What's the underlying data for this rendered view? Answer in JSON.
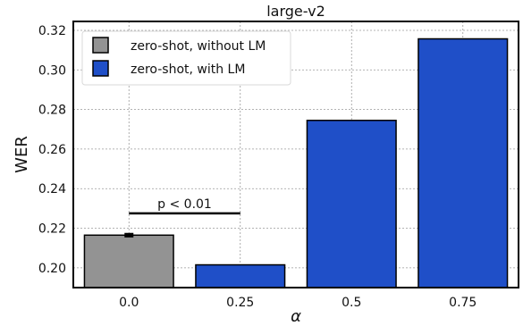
{
  "chart_data": {
    "type": "bar",
    "title": "large-v2",
    "xlabel": "α",
    "ylabel": "WER",
    "categories": [
      "0.0",
      "0.25",
      "0.5",
      "0.75"
    ],
    "series": [
      {
        "name": "zero-shot, without LM",
        "color": "#939393",
        "values": [
          0.2165,
          null,
          null,
          null
        ],
        "errors": [
          0.0007,
          null,
          null,
          null
        ]
      },
      {
        "name": "zero-shot, with LM",
        "color": "#1f4fc8",
        "values": [
          null,
          0.2015,
          0.2745,
          0.3157
        ]
      }
    ],
    "ylim": [
      0.19,
      0.3245
    ],
    "yticks": [
      "0.20",
      "0.22",
      "0.24",
      "0.26",
      "0.28",
      "0.30",
      "0.32"
    ],
    "ytick_values": [
      0.2,
      0.22,
      0.24,
      0.26,
      0.28,
      0.3,
      0.32
    ],
    "grid": true,
    "legend_position": "top-left",
    "annotation": {
      "text": "p < 0.01",
      "from_category": 0,
      "to_category": 1,
      "y": 0.2275
    }
  }
}
